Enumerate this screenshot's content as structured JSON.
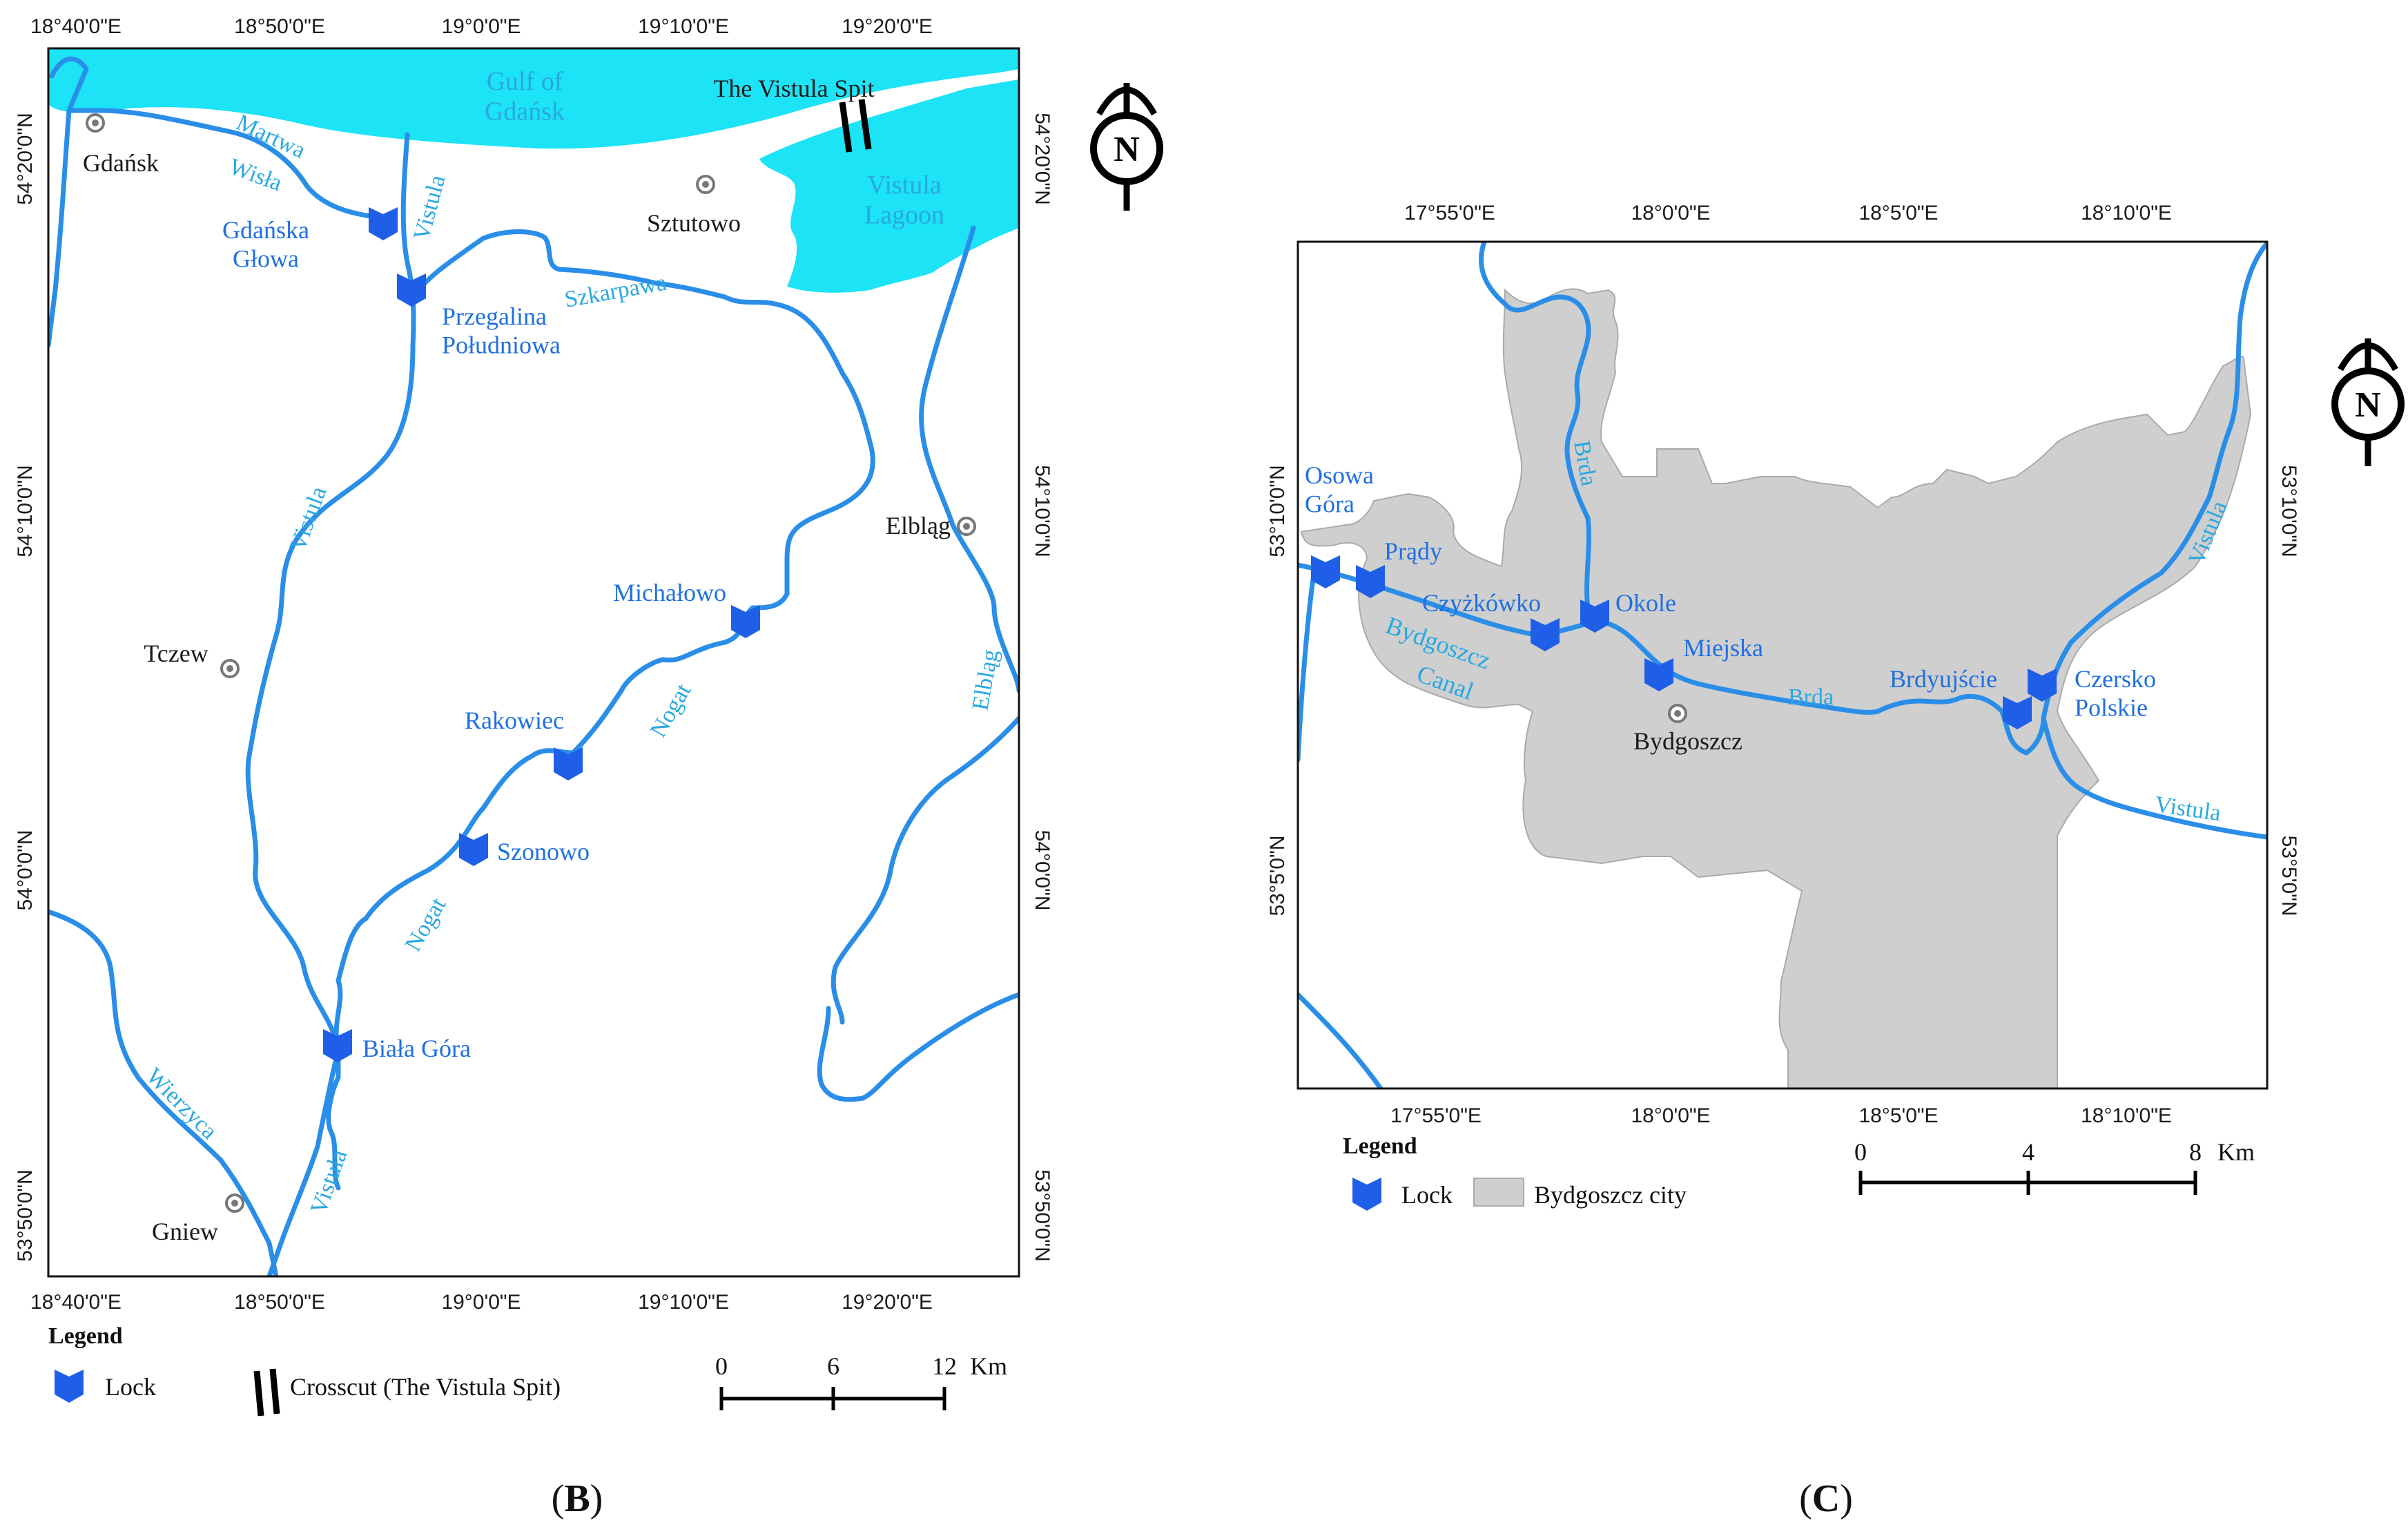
{
  "panels": {
    "B": {
      "caption_letter": "B",
      "top_coords": [
        "18°40'0\"E",
        "18°50'0\"E",
        "19°0'0\"E",
        "19°10'0\"E",
        "19°20'0\"E"
      ],
      "bottom_coords": [
        "18°40'0\"E",
        "18°50'0\"E",
        "19°0'0\"E",
        "19°10'0\"E",
        "19°20'0\"E"
      ],
      "left_coords": [
        "54°20'0\"N",
        "54°10'0\"N",
        "54°0'0\"N",
        "53°50'0\"N"
      ],
      "right_coords": [
        "54°20'0\"N",
        "54°10'0\"N",
        "54°0'0\"N",
        "53°50'0\"N"
      ],
      "water_labels": {
        "gulf": "Gulf of\nGdańsk",
        "martwa": "Martwa",
        "wisla": "Wisła",
        "vistula_top": "Vistula",
        "szkarpawa": "Szkarpawa",
        "vistula_mid": "Vistula",
        "nogat_upper": "Nogat",
        "nogat_lower": "Nogat",
        "elblag_river": "Elbląg",
        "wierzyca": "Wierzyca",
        "vistula_low": "Vistula",
        "lagoon": "Vistula\nLagoon"
      },
      "towns": {
        "gdansk": "Gdańsk",
        "sztutowo": "Sztutowo",
        "tczew": "Tczew",
        "elblag": "Elbląg",
        "gniew": "Gniew",
        "spit": "The Vistula Spit"
      },
      "locks": {
        "gdanska_glowa": "Gdańska\nGłowa",
        "przegalina": "Przegalina\nPołudniowa",
        "michalowo": "Michałowo",
        "rakowiec": "Rakowiec",
        "szonowo": "Szonowo",
        "biala_gora": "Biała Góra"
      },
      "legend": {
        "title": "Legend",
        "lock": "Lock",
        "crosscut": "Crosscut (The Vistula Spit)"
      },
      "scale": {
        "labels": [
          "0",
          "6",
          "12"
        ],
        "unit": "Km"
      }
    },
    "C": {
      "caption_letter": "C",
      "top_coords": [
        "17°55'0\"E",
        "18°0'0\"E",
        "18°5'0\"E",
        "18°10'0\"E"
      ],
      "bottom_coords": [
        "17°55'0\"E",
        "18°0'0\"E",
        "18°5'0\"E",
        "18°10'0\"E"
      ],
      "left_coords": [
        "53°10'0\"N",
        "53°5'0\"N"
      ],
      "right_coords": [
        "53°10'0\"N",
        "53°5'0\"N"
      ],
      "water_labels": {
        "brda_north": "Brda",
        "bydgoszcz": "Bydgoszcz",
        "canal": "Canal",
        "brda_east": "Brda",
        "vistula_ne": "Vistula",
        "vistula_e": "Vistula"
      },
      "locks": {
        "osowa_gora": "Osowa\nGóra",
        "prady": "Prądy",
        "czyzkowko": "Czyżkówko",
        "okole": "Okole",
        "miejska": "Miejska",
        "brdyujscie": "Brdyujście",
        "czersko": "Czersko\nPolskie"
      },
      "towns": {
        "bydgoszcz": "Bydgoszcz"
      },
      "legend": {
        "title": "Legend",
        "lock": "Lock",
        "city": "Bydgoszcz city"
      },
      "scale": {
        "labels": [
          "0",
          "4",
          "8"
        ],
        "unit": "Km"
      }
    }
  },
  "north_arrow_label": "N",
  "colors": {
    "water": "#1ce3f5",
    "river": "#2a8ee8",
    "lock": "#1f5fe8",
    "city": "#cfcfcf"
  }
}
